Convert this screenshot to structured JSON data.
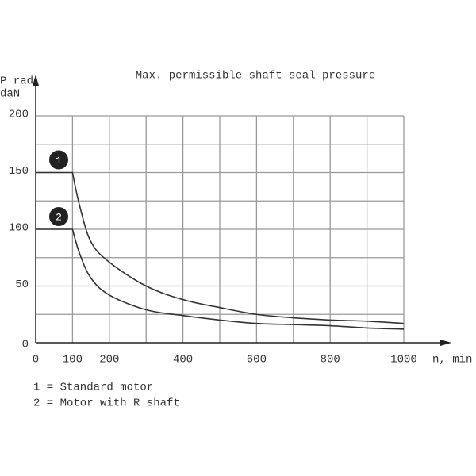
{
  "chart_data": {
    "type": "line",
    "title": "Max. permissible shaft seal pressure",
    "y_label": [
      "P rad",
      "daN"
    ],
    "x_label": "n, min",
    "xlim": [
      0,
      1000
    ],
    "ylim": [
      0,
      200
    ],
    "xticks": [
      0,
      100,
      200,
      400,
      600,
      800,
      1000
    ],
    "yticks": [
      0,
      50,
      100,
      150,
      200
    ],
    "x_grid": [
      100,
      200,
      300,
      400,
      500,
      600,
      700,
      800,
      900,
      1000
    ],
    "y_grid": [
      25,
      50,
      75,
      100,
      125,
      150,
      175,
      200
    ],
    "grid": true,
    "series": [
      {
        "name": "1",
        "description": "1 = Standard motor",
        "color": "#333333",
        "x": [
          0,
          100,
          120,
          150,
          200,
          300,
          400,
          500,
          600,
          700,
          800,
          900,
          1000
        ],
        "values": [
          150,
          150,
          120,
          89,
          71,
          50,
          38,
          31,
          25,
          22,
          20,
          19,
          17
        ]
      },
      {
        "name": "2",
        "description": "2 = Motor with R shaft",
        "color": "#333333",
        "x": [
          0,
          100,
          120,
          150,
          200,
          300,
          400,
          500,
          600,
          700,
          800,
          900,
          1000
        ],
        "values": [
          100,
          100,
          78,
          57,
          42,
          29,
          24,
          20,
          17,
          16,
          15,
          13,
          12
        ]
      }
    ]
  }
}
